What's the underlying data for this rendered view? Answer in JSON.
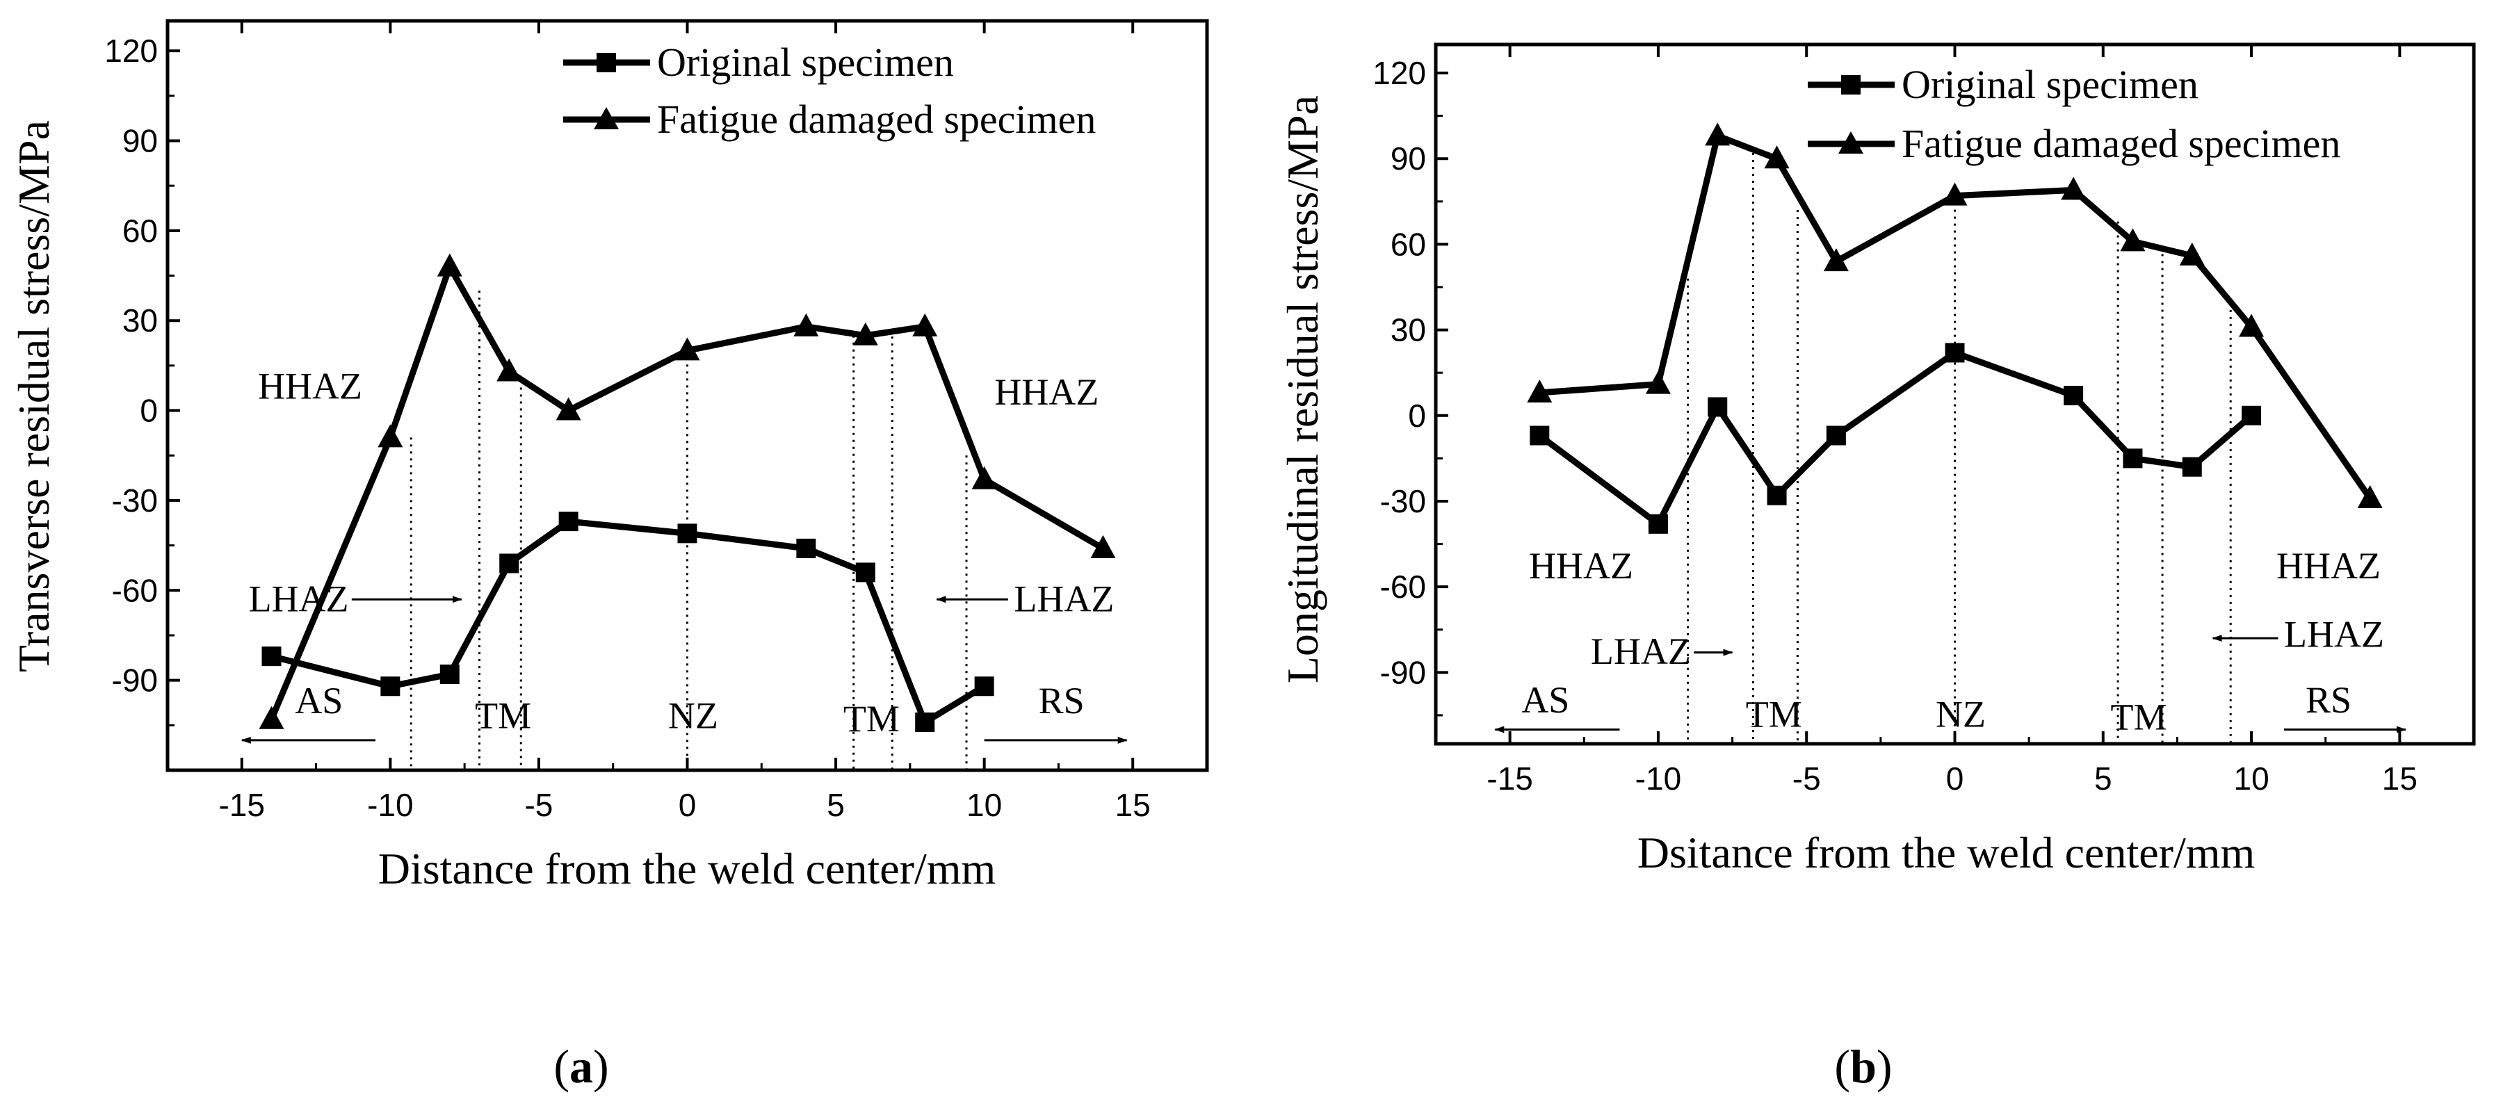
{
  "chart_data": [
    {
      "type": "line",
      "caption_letter": "a",
      "xlabel": "Distance from the weld center/mm",
      "ylabel": "Transverse residual stress/MPa",
      "xlim": [
        -17.5,
        17.5
      ],
      "ylim": [
        -120,
        130
      ],
      "xticks": [
        -15,
        -10,
        -5,
        0,
        5,
        10,
        15
      ],
      "yticks": [
        -90,
        -60,
        -30,
        0,
        30,
        60,
        90,
        120
      ],
      "legend_position": "top-right",
      "series": [
        {
          "name": "Original specimen",
          "marker": "square",
          "x": [
            -14,
            -10,
            -8,
            -6,
            -4,
            0,
            4,
            6,
            8,
            10
          ],
          "y": [
            -82,
            -92,
            -88,
            -51,
            -37,
            -41,
            -46,
            -54,
            -104,
            -92
          ]
        },
        {
          "name": "Fatigue damaged specimen",
          "marker": "triangle",
          "x": [
            -14,
            -10,
            -8,
            -6,
            -4,
            0,
            4,
            6,
            8,
            10,
            14
          ],
          "y": [
            -103,
            -9,
            48,
            13,
            0,
            20,
            28,
            25,
            28,
            -23,
            -46
          ]
        }
      ],
      "guides": [
        {
          "x": -9.3,
          "y_top": -9
        },
        {
          "x": -7.0,
          "y_top": 40
        },
        {
          "x": -5.6,
          "y_top": 10
        },
        {
          "x": 0,
          "y_top": 20
        },
        {
          "x": 5.6,
          "y_top": 25
        },
        {
          "x": 6.9,
          "y_top": 27
        },
        {
          "x": 9.4,
          "y_top": -15
        }
      ],
      "annotations": [
        {
          "text": "HHAZ",
          "x": -12.7,
          "y": 4,
          "anchor": "middle"
        },
        {
          "text": "HHAZ",
          "x": 12.1,
          "y": 2,
          "anchor": "middle"
        },
        {
          "text": "LHAZ",
          "x": -11.4,
          "y": -67,
          "anchor": "end",
          "arrow": "right",
          "arrow_from": -11.3,
          "arrow_to": -7.6,
          "arrow_y": -63
        },
        {
          "text": "LHAZ",
          "x": 11.0,
          "y": -67,
          "anchor": "start",
          "arrow": "left",
          "arrow_from": 10.8,
          "arrow_to": 8.4,
          "arrow_y": -63
        },
        {
          "text": "AS",
          "x": -12.4,
          "y": -101,
          "anchor": "middle",
          "arrow": "left",
          "arrow_from": -10.5,
          "arrow_to": -15.0,
          "arrow_y": -110
        },
        {
          "text": "RS",
          "x": 12.6,
          "y": -101,
          "anchor": "middle",
          "arrow": "right",
          "arrow_from": 10.0,
          "arrow_to": 14.8,
          "arrow_y": -110
        },
        {
          "text": "TM",
          "x": -6.2,
          "y": -106,
          "anchor": "middle"
        },
        {
          "text": "NZ",
          "x": 0.2,
          "y": -106,
          "anchor": "middle"
        },
        {
          "text": "TM",
          "x": 6.2,
          "y": -107,
          "anchor": "middle"
        }
      ]
    },
    {
      "type": "line",
      "caption_letter": "b",
      "xlabel": "Dsitance from the weld center/mm",
      "ylabel": "Longitudinal residual stress/MPa",
      "xlim": [
        -17.5,
        17.5
      ],
      "ylim": [
        -115,
        130
      ],
      "xticks": [
        -15,
        -10,
        -5,
        0,
        5,
        10,
        15
      ],
      "yticks": [
        -90,
        -60,
        -30,
        0,
        30,
        60,
        90,
        120
      ],
      "legend_position": "top-right",
      "series": [
        {
          "name": "Original specimen",
          "marker": "square",
          "x": [
            -14,
            -10,
            -8,
            -6,
            -4,
            0,
            4,
            6,
            8,
            10
          ],
          "y": [
            -7,
            -38,
            3,
            -28,
            -7,
            22,
            7,
            -15,
            -18,
            0
          ]
        },
        {
          "name": "Fatigue damaged specimen",
          "marker": "triangle",
          "x": [
            -14,
            -10,
            -8,
            -6,
            -4,
            0,
            4,
            6,
            8,
            10,
            14
          ],
          "y": [
            8,
            11,
            98,
            90,
            54,
            77,
            79,
            61,
            56,
            31,
            -29
          ]
        }
      ],
      "guides": [
        {
          "x": -9.0,
          "y_top": 48
        },
        {
          "x": -6.8,
          "y_top": 92
        },
        {
          "x": -5.3,
          "y_top": 72
        },
        {
          "x": 0,
          "y_top": 77
        },
        {
          "x": 5.5,
          "y_top": 68
        },
        {
          "x": 7.0,
          "y_top": 59
        },
        {
          "x": 9.3,
          "y_top": 37
        }
      ],
      "annotations": [
        {
          "text": "HHAZ",
          "x": -12.6,
          "y": -57,
          "anchor": "middle"
        },
        {
          "text": "HHAZ",
          "x": 12.6,
          "y": -57,
          "anchor": "middle"
        },
        {
          "text": "LHAZ",
          "x": -8.9,
          "y": -87,
          "anchor": "end",
          "arrow": "right",
          "arrow_from": -8.8,
          "arrow_to": -7.5,
          "arrow_y": -83
        },
        {
          "text": "LHAZ",
          "x": 11.1,
          "y": -81,
          "anchor": "start",
          "arrow": "left",
          "arrow_from": 10.9,
          "arrow_to": 8.7,
          "arrow_y": -78
        },
        {
          "text": "AS",
          "x": -13.8,
          "y": -104,
          "anchor": "middle",
          "arrow": "left",
          "arrow_from": -11.3,
          "arrow_to": -15.5,
          "arrow_y": -110
        },
        {
          "text": "RS",
          "x": 12.6,
          "y": -104,
          "anchor": "middle",
          "arrow": "right",
          "arrow_from": 11.1,
          "arrow_to": 15.2,
          "arrow_y": -110
        },
        {
          "text": "TM",
          "x": -6.1,
          "y": -109,
          "anchor": "middle"
        },
        {
          "text": "NZ",
          "x": 0.2,
          "y": -109,
          "anchor": "middle"
        },
        {
          "text": "TM",
          "x": 6.2,
          "y": -110,
          "anchor": "middle"
        }
      ]
    }
  ]
}
